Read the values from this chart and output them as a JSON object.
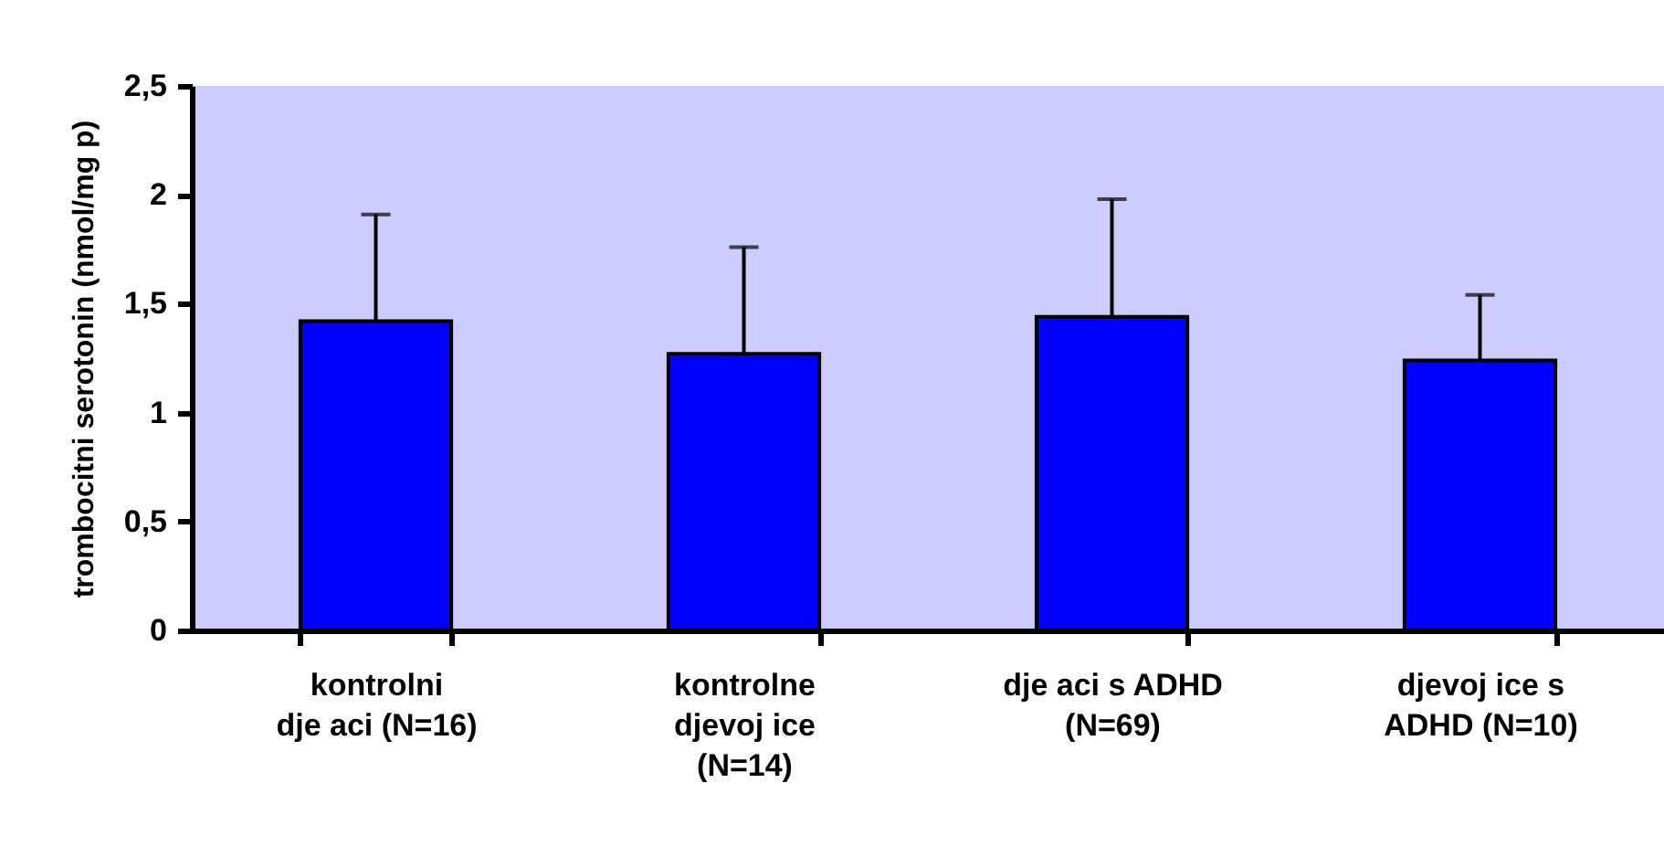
{
  "chart_data": {
    "type": "bar",
    "ylabel": "trombocitni serotonin (nmol/mg p)",
    "categories": [
      "kontrolni\ndje  aci (N=16)",
      "kontrolne\ndjevoj  ice\n(N=14)",
      "dje  aci s ADHD\n(N=69)",
      "djevoj  ice s\nADHD (N=10)"
    ],
    "values": [
      1.42,
      1.27,
      1.44,
      1.24
    ],
    "errors": [
      [
        1.42,
        1.91
      ],
      [
        1.27,
        1.76
      ],
      [
        1.44,
        1.98
      ],
      [
        1.24,
        1.54
      ]
    ],
    "color": "#0000ff",
    "ylim": [
      0,
      2.5
    ],
    "yticks": [
      0,
      {
        "value": 0.5,
        "label": "0,5"
      },
      1,
      {
        "value": 1.5,
        "label": "1,5"
      },
      2,
      {
        "value": 2.5,
        "label": "2,5"
      }
    ],
    "grid": false
  }
}
